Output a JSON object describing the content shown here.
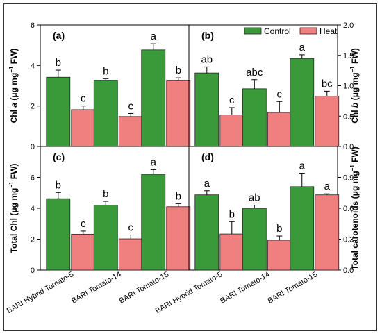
{
  "chart_data": [
    {
      "type": "bar",
      "panel_label": "(a)",
      "ylabel_parts": [
        "Chl ",
        "a",
        " (μg mg",
        "−1",
        " FW)"
      ],
      "ylim": [
        0,
        6
      ],
      "yticks": [
        "0",
        "2",
        "4",
        "6"
      ],
      "categories": [
        "BARI Hybrid Tomato-5",
        "BARI Tomato-14",
        "BARI Tomato-15"
      ],
      "series": [
        {
          "name": "Control",
          "values": [
            3.42,
            3.27,
            4.77
          ],
          "errors": [
            0.35,
            0.08,
            0.3
          ],
          "letters": [
            "b",
            "b",
            "a"
          ]
        },
        {
          "name": "Heat",
          "values": [
            1.82,
            1.48,
            3.27
          ],
          "errors": [
            0.18,
            0.15,
            0.12
          ],
          "letters": [
            "c",
            "c",
            "b"
          ]
        }
      ]
    },
    {
      "type": "bar",
      "panel_label": "(b)",
      "ylabel_parts": [
        "Chl ",
        "b",
        " (μg mg",
        "−1",
        " FW)"
      ],
      "ylim": [
        0,
        2.0
      ],
      "yticks": [
        "0.0",
        "0.5",
        "1.0",
        "1.5",
        "2.0"
      ],
      "categories": [
        "BARI Hybrid Tomato-5",
        "BARI Tomato-14",
        "BARI Tomato-15"
      ],
      "series": [
        {
          "name": "Control",
          "values": [
            1.21,
            0.95,
            1.45
          ],
          "errors": [
            0.1,
            0.15,
            0.06
          ],
          "letters": [
            "ab",
            "abc",
            "a"
          ]
        },
        {
          "name": "Heat",
          "values": [
            0.52,
            0.56,
            0.83
          ],
          "errors": [
            0.12,
            0.18,
            0.08
          ],
          "letters": [
            "c",
            "c",
            "bc"
          ]
        }
      ]
    },
    {
      "type": "bar",
      "panel_label": "(c)",
      "ylabel_parts": [
        "Total Chl (μg mg",
        "−1",
        " FW)"
      ],
      "ylim": [
        0,
        8
      ],
      "yticks": [
        "0",
        "2",
        "4",
        "6"
      ],
      "categories": [
        "BARI Hybrid Tomato-5",
        "BARI Tomato-14",
        "BARI Tomato-15"
      ],
      "series": [
        {
          "name": "Control",
          "values": [
            4.62,
            4.2,
            6.2
          ],
          "errors": [
            0.4,
            0.25,
            0.3
          ],
          "letters": [
            "b",
            "b",
            "a"
          ]
        },
        {
          "name": "Heat",
          "values": [
            2.32,
            2.02,
            4.1
          ],
          "errors": [
            0.2,
            0.25,
            0.2
          ],
          "letters": [
            "c",
            "c",
            "b"
          ]
        }
      ]
    },
    {
      "type": "bar",
      "panel_label": "(d)",
      "ylabel_parts": [
        "Total carotenoids (μg mg",
        "−1",
        " FW)"
      ],
      "ylim": [
        0,
        1.2
      ],
      "yticks": [
        "0.0",
        "0.3",
        "0.6",
        "0.9"
      ],
      "categories": [
        "BARI Hybrid Tomato-5",
        "BARI Tomato-14",
        "BARI Tomato-15"
      ],
      "series": [
        {
          "name": "Control",
          "values": [
            0.73,
            0.6,
            0.81
          ],
          "errors": [
            0.04,
            0.03,
            0.13
          ],
          "letters": [
            "a",
            "ab",
            "a"
          ]
        },
        {
          "name": "Heat",
          "values": [
            0.35,
            0.29,
            0.73
          ],
          "errors": [
            0.12,
            0.04,
            0.01
          ],
          "letters": [
            "b",
            "b",
            "a"
          ]
        }
      ]
    }
  ],
  "legend": {
    "placement": "top-right",
    "items": [
      {
        "label": "Control",
        "color": "#3a9a3a"
      },
      {
        "label": "Heat",
        "color": "#f08080"
      }
    ]
  },
  "colors": {
    "control": "#3a9a3a",
    "heat": "#f08080",
    "edge": "#222222"
  }
}
